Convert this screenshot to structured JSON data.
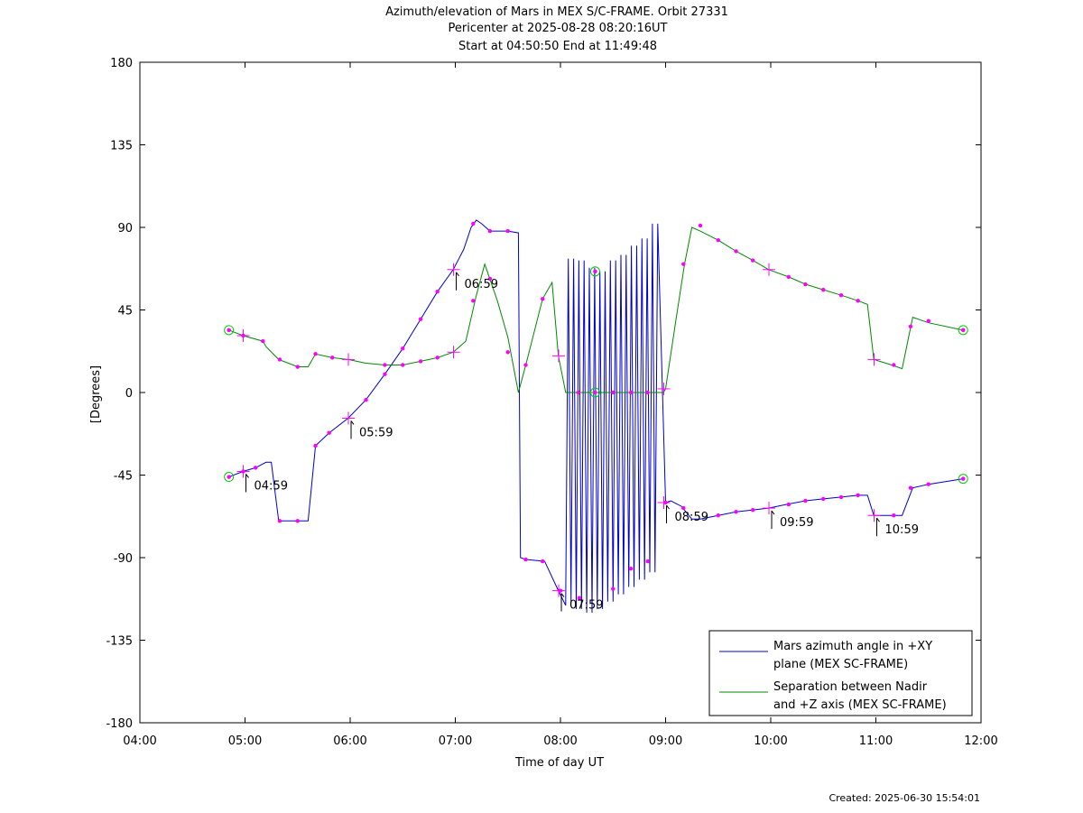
{
  "chart_data": {
    "type": "line",
    "title": "Azimuth/elevation of Mars in MEX S/C-FRAME.  Orbit 27331",
    "subtitle_1": "Pericenter at 2025-08-28 08:20:16UT",
    "subtitle_2": "Start at 04:50:50 End at 11:49:48",
    "xlabel": "Time of day UT",
    "ylabel": "[Degrees]",
    "xlim": [
      4,
      12
    ],
    "ylim": [
      -180,
      180
    ],
    "xticks": [
      4,
      5,
      6,
      7,
      8,
      9,
      10,
      11,
      12
    ],
    "xtick_labels": [
      "04:00",
      "05:00",
      "06:00",
      "07:00",
      "08:00",
      "09:00",
      "10:00",
      "11:00",
      "12:00"
    ],
    "yticks": [
      180,
      135,
      90,
      45,
      0,
      -45,
      -90,
      -135,
      -180
    ],
    "ytick_labels": [
      "180",
      "135",
      "90",
      "45",
      "0",
      "-45",
      "-90",
      "-135",
      "-180"
    ],
    "legend_position": "bottom-right",
    "marker_color": "#ff00ff",
    "endpoint_color": "#00cc00",
    "series": [
      {
        "name": "Mars azimuth angle in +XY plane (MEX SC-FRAME)",
        "legend_line_1": "Mars azimuth angle in +XY",
        "legend_line_2": "plane (MEX SC-FRAME)",
        "color": "#0000cc",
        "x": [
          4.847,
          4.983,
          5.1,
          5.2,
          5.25,
          5.32,
          5.5,
          5.6,
          5.67,
          5.8,
          5.98,
          6.15,
          6.33,
          6.5,
          6.67,
          6.83,
          6.98,
          7.08,
          7.15,
          7.2,
          7.25,
          7.33,
          7.5,
          7.6,
          7.62,
          7.67,
          7.85,
          7.98,
          8.05
        ],
        "y": [
          -46,
          -43,
          -41,
          -38,
          -38,
          -70,
          -70,
          -70,
          -29,
          -22,
          -14,
          -4,
          10,
          24,
          40,
          55,
          67,
          78,
          90,
          94,
          92,
          88,
          88,
          87,
          -90,
          -91,
          -92,
          -108,
          -116
        ],
        "x2": [
          9.0,
          9.05,
          9.15,
          9.25,
          9.33,
          9.5,
          9.67,
          9.83,
          9.98,
          10.15,
          10.33,
          10.5,
          10.67,
          10.83,
          10.92,
          10.98,
          11.05,
          11.15,
          11.25,
          11.35,
          11.5,
          11.83
        ],
        "y2": [
          -60,
          -59,
          -62,
          -69,
          -69,
          -67,
          -65,
          -64,
          -63,
          -61,
          -59,
          -58,
          -57,
          -56,
          -56,
          -67,
          -67,
          -67,
          -67,
          -52,
          -50,
          -47
        ],
        "oscillation_x": [
          8.05,
          8.15,
          8.25,
          8.35,
          8.45,
          8.55,
          8.65,
          8.75,
          8.85,
          8.95
        ],
        "oscillation_min": [
          -114,
          -118,
          -120,
          -118,
          -114,
          -110,
          -106,
          -102,
          -98,
          -85
        ],
        "oscillation_max": [
          73,
          72,
          68,
          66,
          72,
          75,
          80,
          84,
          92,
          95
        ],
        "markers_x": [
          4.847,
          4.983,
          5.1,
          5.33,
          5.5,
          5.67,
          5.8,
          6.15,
          6.33,
          6.5,
          6.67,
          6.83,
          7.17,
          7.33,
          7.5,
          7.67,
          7.83,
          8.0,
          8.18,
          8.33,
          8.5,
          8.67,
          8.83,
          9.0,
          9.17,
          9.5,
          9.67,
          9.83,
          10.17,
          10.33,
          10.5,
          10.67,
          10.83,
          11.17,
          11.33,
          11.5,
          11.83
        ],
        "markers_y": [
          -46,
          -43,
          -41,
          -70,
          -70,
          -29,
          -22,
          -4,
          10,
          24,
          40,
          55,
          92,
          88,
          88,
          -91,
          -92,
          -108,
          -112,
          66,
          -107,
          -96,
          -92,
          -60,
          -63,
          -67,
          -65,
          -64,
          -61,
          -59,
          -58,
          -57,
          -56,
          -67,
          -52,
          -50,
          -47
        ],
        "hour_marks": [
          {
            "x": 4.983,
            "y": -43,
            "label": "04:59"
          },
          {
            "x": 5.983,
            "y": -14,
            "label": "05:59"
          },
          {
            "x": 6.983,
            "y": 67,
            "label": "06:59"
          },
          {
            "x": 7.983,
            "y": -108,
            "label": "07:59"
          },
          {
            "x": 8.983,
            "y": -60,
            "label": "08:59"
          },
          {
            "x": 9.983,
            "y": -63,
            "label": "09:59"
          },
          {
            "x": 10.983,
            "y": -67,
            "label": "10:59"
          }
        ]
      },
      {
        "name": "Separation between Nadir and +Z axis (MEX SC-FRAME)",
        "legend_line_1": "Separation between Nadir",
        "legend_line_2": "and +Z axis (MEX SC-FRAME)",
        "color": "#008800",
        "x": [
          4.847,
          4.983,
          5.17,
          5.2,
          5.32,
          5.5,
          5.6,
          5.67,
          5.83,
          5.98,
          6.15,
          6.33,
          6.5,
          6.67,
          6.83,
          6.98,
          7.1,
          7.2,
          7.28,
          7.4,
          7.5,
          7.6,
          7.67,
          7.83,
          7.92,
          7.98,
          8.05,
          8.33,
          8.98,
          9.0,
          9.1,
          9.18,
          9.25,
          9.33,
          9.5,
          9.67,
          9.83,
          9.98,
          10.17,
          10.33,
          10.5,
          10.67,
          10.83,
          10.92,
          10.98,
          11.15,
          11.25,
          11.35,
          11.5,
          11.83
        ],
        "y": [
          34,
          31,
          28,
          25,
          18,
          14,
          14,
          21,
          19,
          18,
          16,
          15,
          15,
          17,
          19,
          22,
          28,
          53,
          70,
          50,
          30,
          0,
          15,
          51,
          60,
          20,
          0,
          0,
          0,
          2,
          40,
          70,
          90,
          88,
          83,
          77,
          72,
          67,
          63,
          59,
          56,
          53,
          50,
          48,
          18,
          15,
          13,
          41,
          38,
          34
        ],
        "markers_x": [
          4.847,
          4.983,
          5.17,
          5.33,
          5.5,
          5.67,
          5.83,
          6.33,
          6.5,
          6.67,
          6.83,
          7.17,
          7.33,
          7.5,
          7.67,
          7.83,
          8.17,
          8.5,
          8.67,
          8.83,
          9.17,
          9.33,
          9.5,
          9.67,
          9.83,
          10.17,
          10.33,
          10.5,
          10.67,
          10.83,
          11.17,
          11.33,
          11.5,
          11.83
        ],
        "markers_y": [
          34,
          31,
          28,
          18,
          14,
          21,
          19,
          15,
          15,
          17,
          19,
          50,
          62,
          22,
          15,
          51,
          0,
          0,
          0,
          0,
          70,
          91,
          83,
          77,
          72,
          63,
          59,
          56,
          53,
          50,
          15,
          36,
          39,
          34
        ],
        "hour_marks": [
          {
            "x": 4.983,
            "y": 31
          },
          {
            "x": 5.983,
            "y": 18
          },
          {
            "x": 6.983,
            "y": 22
          },
          {
            "x": 7.983,
            "y": 20
          },
          {
            "x": 8.983,
            "y": 2
          },
          {
            "x": 9.983,
            "y": 67
          },
          {
            "x": 10.983,
            "y": 18
          }
        ]
      }
    ],
    "endpoints": [
      {
        "x": 4.847,
        "y": 34
      },
      {
        "x": 4.847,
        "y": -46
      },
      {
        "x": 8.33,
        "y": 66
      },
      {
        "x": 8.33,
        "y": 0
      },
      {
        "x": 11.83,
        "y": 34
      },
      {
        "x": 11.83,
        "y": -47
      }
    ]
  },
  "footer": {
    "created": "Created: 2025-06-30 15:54:01"
  }
}
